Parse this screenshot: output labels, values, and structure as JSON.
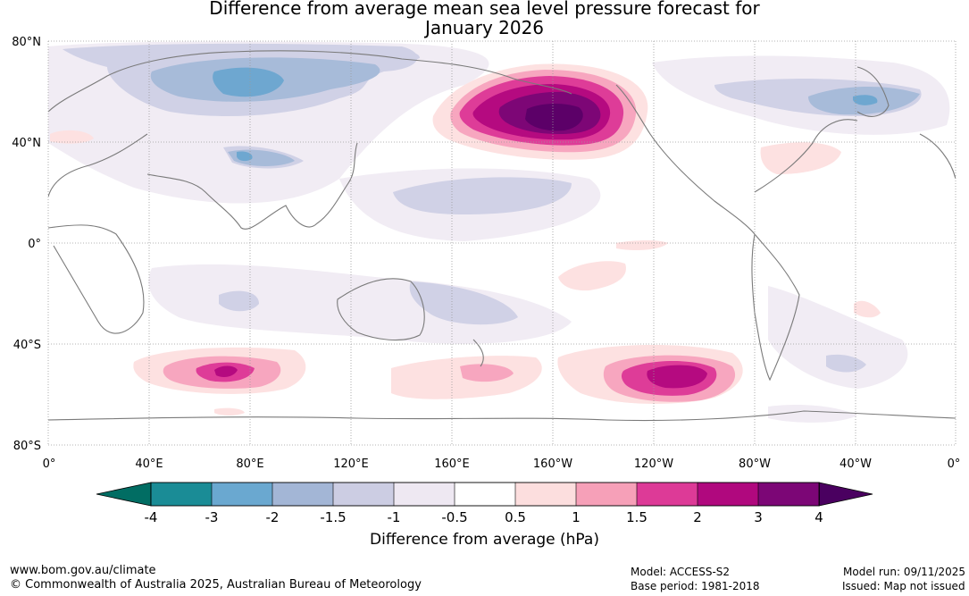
{
  "title_line1": "Difference from average mean sea level pressure forecast for",
  "title_line2": "January 2026",
  "lat_labels": [
    "80°N",
    "40°N",
    "0°",
    "40°S",
    "80°S"
  ],
  "lon_labels": [
    "0°",
    "40°E",
    "80°E",
    "120°E",
    "160°E",
    "160°W",
    "120°W",
    "80°W",
    "40°W",
    "0°"
  ],
  "colorbar": {
    "ticks": [
      "-4",
      "-3",
      "-2",
      "-1.5",
      "-1",
      "-0.5",
      "0.5",
      "1",
      "1.5",
      "2",
      "3",
      "4"
    ],
    "colors": [
      "#1a8c96",
      "#6aa8d0",
      "#a3b6d6",
      "#cccde3",
      "#eee8f2",
      "#ffffff",
      "#fcdede",
      "#f6a0b8",
      "#dd3a97",
      "#b0087e",
      "#7c0676"
    ],
    "under_color": "#016d63",
    "over_color": "#4a0060",
    "title": "Difference from average (hPa)"
  },
  "footer": {
    "website": "www.bom.gov.au/climate",
    "copyright": "© Commonwealth of Australia 2025, Australian Bureau of Meteorology",
    "model": "Model: ACCESS-S2",
    "base_period": "Base period: 1981-2018",
    "model_run": "Model run: 09/11/2025",
    "issued": "Issued: Map not issued"
  }
}
